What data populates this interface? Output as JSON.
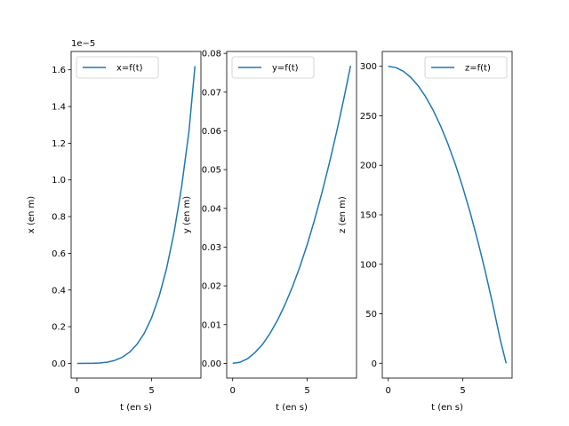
{
  "colors": {
    "series": "#1f77b4",
    "axes": "#000000",
    "background": "#ffffff",
    "legend_border": "#cccccc"
  },
  "chart_data": [
    {
      "type": "line",
      "xlabel": "t (en s)",
      "ylabel": "x (en m)",
      "xlim": [
        -0.4,
        8.3
      ],
      "ylim": [
        -8e-07,
        1.7e-05
      ],
      "x_ticks": [
        0,
        5
      ],
      "x_tick_labels": [
        "0",
        "5"
      ],
      "y_ticks": [
        0,
        2e-06,
        4e-06,
        6e-06,
        8e-06,
        1e-05,
        1.2e-05,
        1.4e-05,
        1.6e-05
      ],
      "y_tick_labels": [
        "0.0",
        "0.2",
        "0.4",
        "0.6",
        "0.8",
        "1.0",
        "1.2",
        "1.4",
        "1.6"
      ],
      "y_offset_label": "1e−5",
      "legend_position": "top-left",
      "grid": false,
      "series": [
        {
          "name": "x=f(t)",
          "x": [
            0,
            0.5,
            1,
            1.5,
            2,
            2.5,
            3,
            3.5,
            4,
            4.5,
            5,
            5.5,
            6,
            6.5,
            7,
            7.5,
            7.9
          ],
          "y": [
            0,
            4e-09,
            4e-09,
            2e-08,
            6.4e-08,
            1.56e-07,
            3.24e-07,
            6e-07,
            1.024e-06,
            1.64e-06,
            2.5e-06,
            3.66e-06,
            5.18e-06,
            7.14e-06,
            9.6e-06,
            1.266e-05,
            1.62e-05
          ]
        }
      ]
    },
    {
      "type": "line",
      "xlabel": "t (en s)",
      "ylabel": "y (en m)",
      "xlim": [
        -0.4,
        8.3
      ],
      "ylim": [
        -0.0038,
        0.0805
      ],
      "x_ticks": [
        0,
        5
      ],
      "x_tick_labels": [
        "0",
        "5"
      ],
      "y_ticks": [
        0,
        0.01,
        0.02,
        0.03,
        0.04,
        0.05,
        0.06,
        0.07,
        0.08
      ],
      "y_tick_labels": [
        "0.00",
        "0.01",
        "0.02",
        "0.03",
        "0.04",
        "0.05",
        "0.06",
        "0.07",
        "0.08"
      ],
      "legend_position": "top-left",
      "grid": false,
      "series": [
        {
          "name": "y=f(t)",
          "x": [
            0,
            0.5,
            1,
            1.5,
            2,
            2.5,
            3,
            3.5,
            4,
            4.5,
            5,
            5.5,
            6,
            6.5,
            7,
            7.5,
            7.9
          ],
          "y": [
            0,
            0.0003,
            0.0012,
            0.0028,
            0.0049,
            0.0077,
            0.0111,
            0.0151,
            0.0197,
            0.0249,
            0.0307,
            0.0372,
            0.0443,
            0.052,
            0.0603,
            0.0692,
            0.0768
          ]
        }
      ]
    },
    {
      "type": "line",
      "xlabel": "t (en s)",
      "ylabel": "z (en m)",
      "xlim": [
        -0.4,
        8.3
      ],
      "ylim": [
        -15,
        315
      ],
      "x_ticks": [
        0,
        5
      ],
      "x_tick_labels": [
        "0",
        "5"
      ],
      "y_ticks": [
        0,
        50,
        100,
        150,
        200,
        250,
        300
      ],
      "y_tick_labels": [
        "0",
        "50",
        "100",
        "150",
        "200",
        "250",
        "300"
      ],
      "legend_position": "top-right",
      "grid": false,
      "series": [
        {
          "name": "z=f(t)",
          "x": [
            0,
            0.5,
            1,
            1.5,
            2,
            2.5,
            3,
            3.5,
            4,
            4.5,
            5,
            5.5,
            6,
            6.5,
            7,
            7.5,
            7.9
          ],
          "y": [
            300,
            298.8,
            295.1,
            289,
            280.4,
            269.4,
            255.9,
            240,
            221.6,
            200.8,
            177.5,
            151.7,
            123.6,
            92.9,
            59.8,
            24.3,
            0
          ]
        }
      ]
    }
  ]
}
